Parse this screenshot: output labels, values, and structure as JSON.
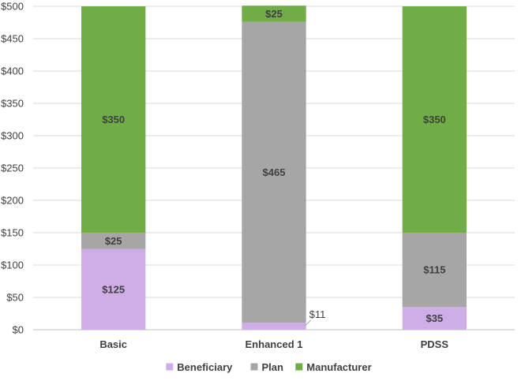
{
  "chart_data": {
    "type": "bar",
    "stacked": true,
    "categories": [
      "Basic",
      "Enhanced 1",
      "PDSS"
    ],
    "series": [
      {
        "name": "Beneficiary",
        "values": [
          125,
          11,
          35
        ],
        "color": "#cfaee8"
      },
      {
        "name": "Plan",
        "values": [
          25,
          465,
          115
        ],
        "color": "#a6a6a6"
      },
      {
        "name": "Manufacturer",
        "values": [
          350,
          25,
          350
        ],
        "color": "#70ad47"
      }
    ],
    "data_labels": [
      [
        "$125",
        "$11",
        "$35"
      ],
      [
        "$25",
        "$465",
        "$115"
      ],
      [
        "$350",
        "$25",
        "$350"
      ]
    ],
    "y_ticks": [
      "$0",
      "$50",
      "$100",
      "$150",
      "$200",
      "$250",
      "$300",
      "$350",
      "$400",
      "$450",
      "$500"
    ],
    "ylim": [
      0,
      500
    ],
    "grid": true,
    "legend_position": "bottom",
    "title": "",
    "xlabel": "",
    "ylabel": ""
  }
}
